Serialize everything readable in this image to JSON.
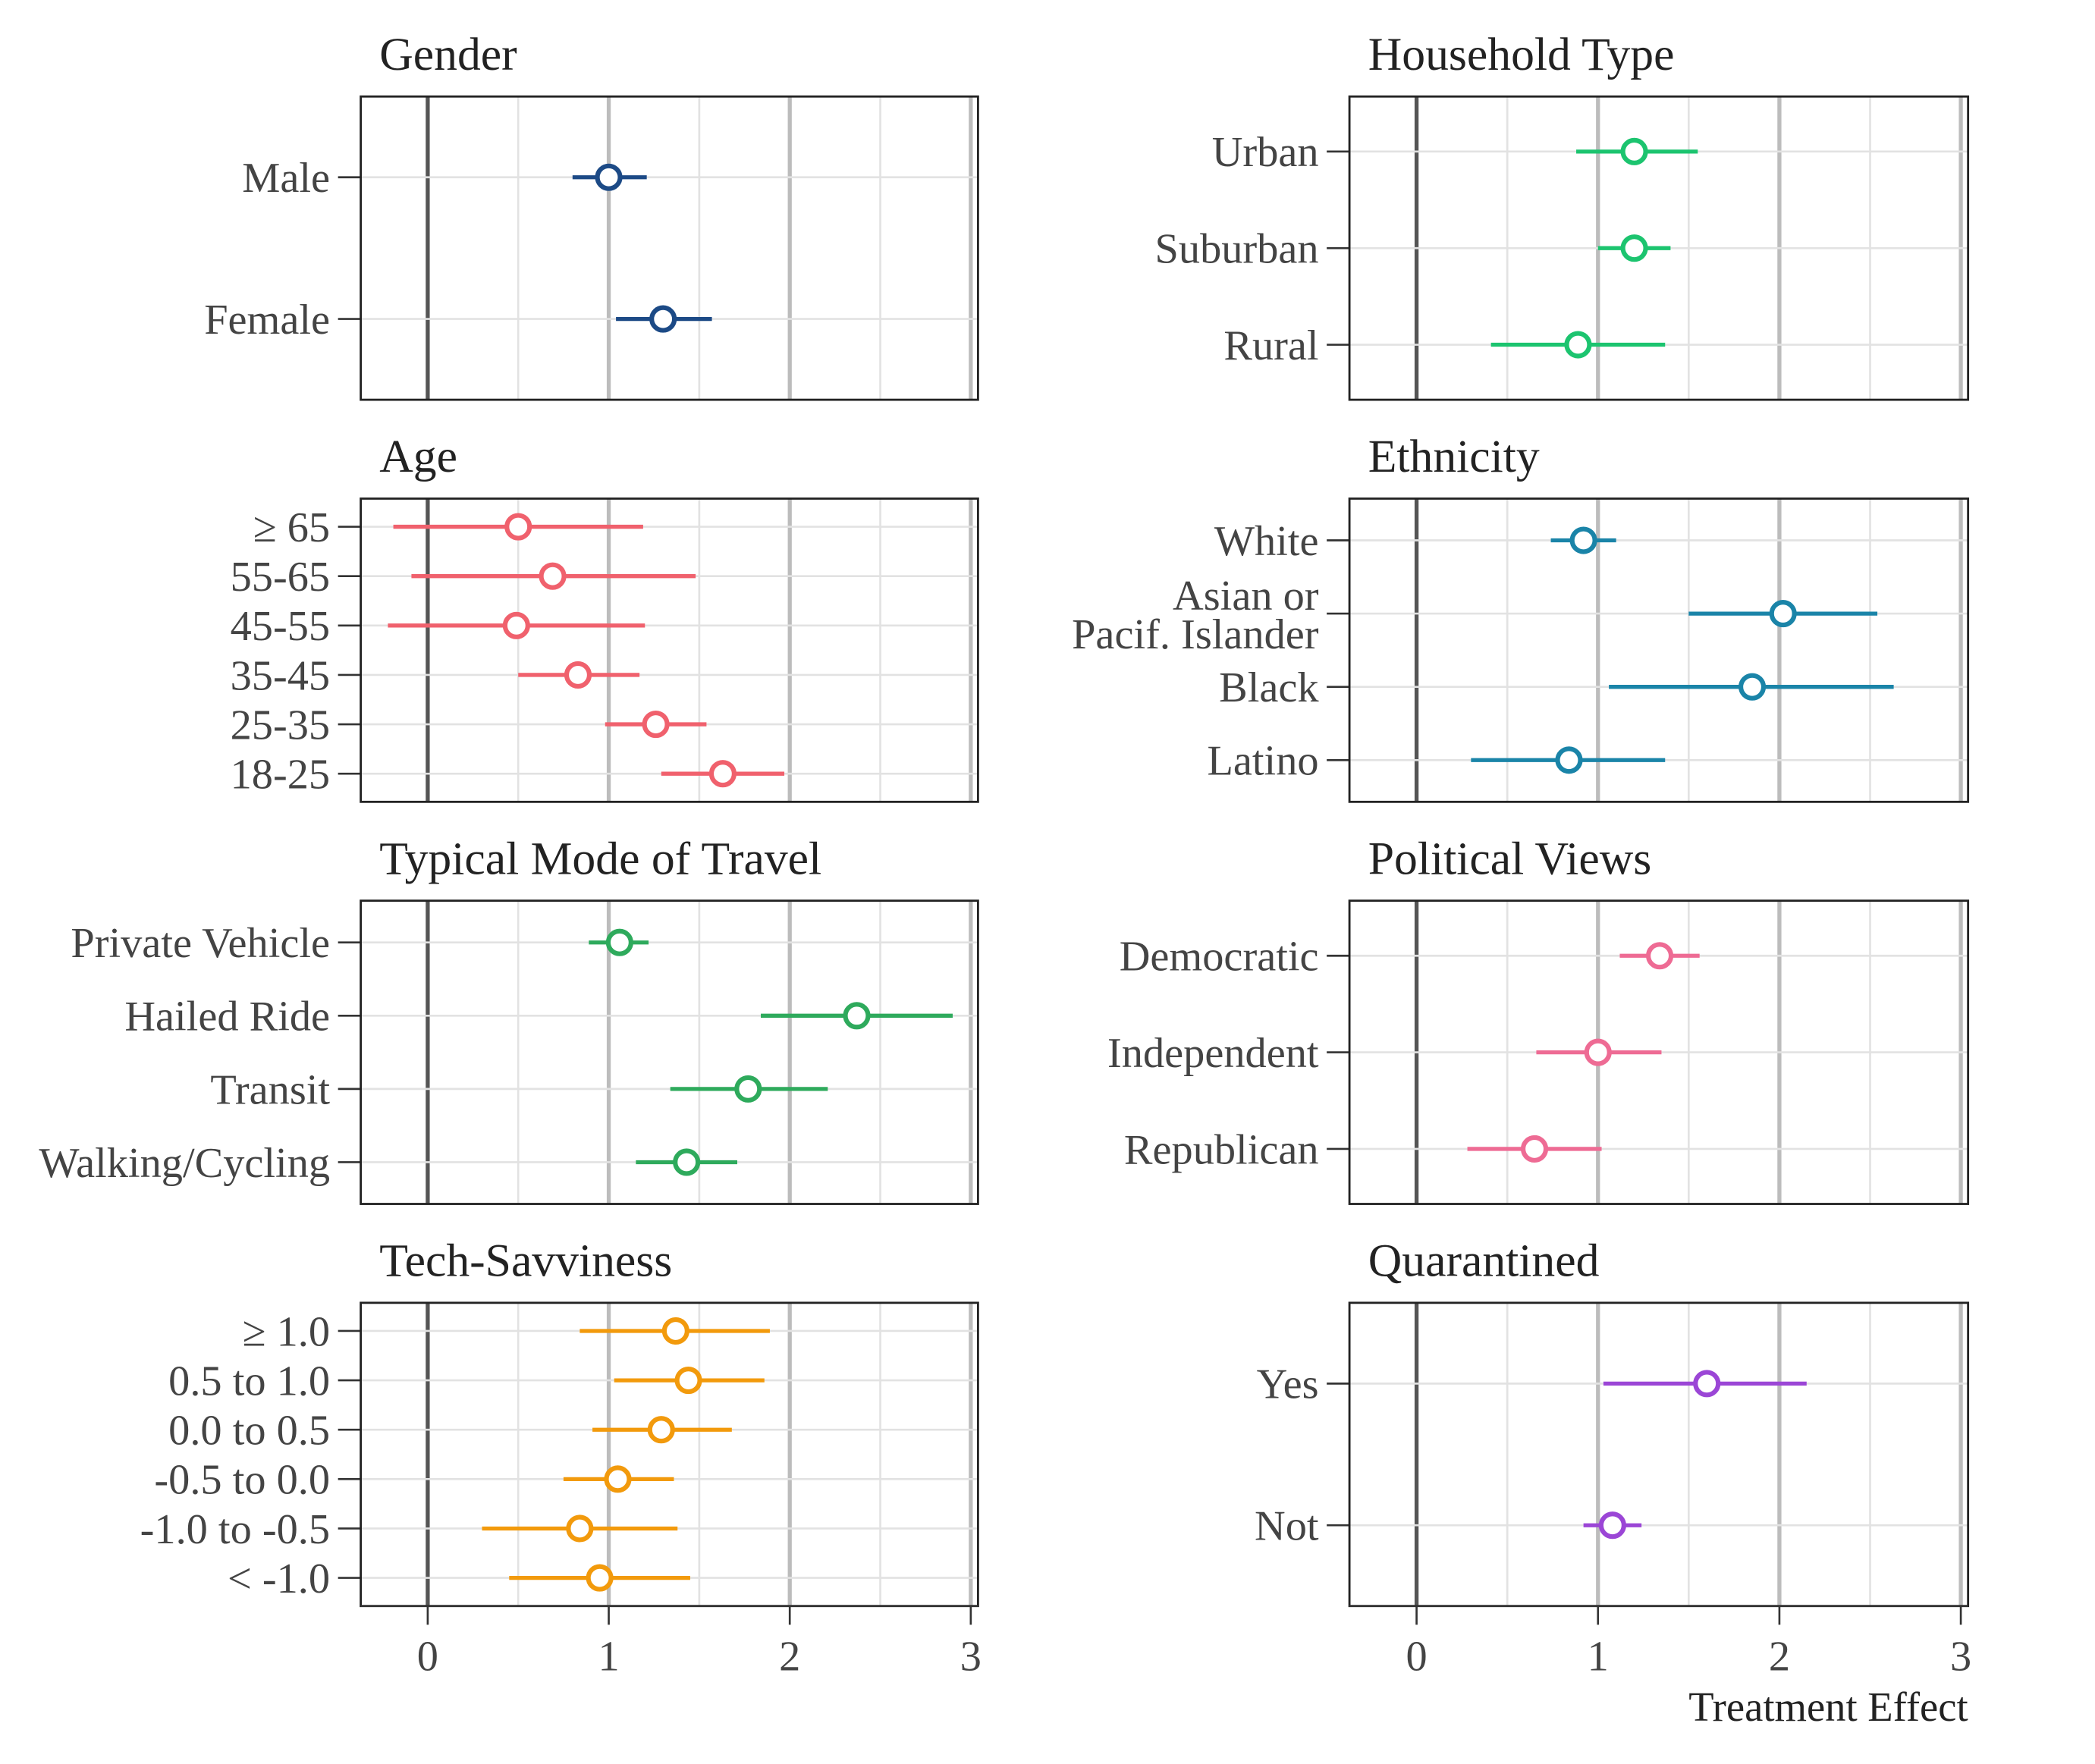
{
  "chart_data": {
    "type": "scatter",
    "subtype": "forest-plot-with-error-bars",
    "xlabel": "Treatment Effect",
    "xlim": [
      -0.37,
      3.04
    ],
    "xticks": [
      0,
      1,
      2,
      3
    ],
    "grid": true,
    "panels": [
      {
        "title": "Gender",
        "color": "#1c4a86",
        "categories": [
          "Male",
          "Female"
        ],
        "estimate": [
          1.0,
          1.3
        ],
        "lower": [
          0.8,
          1.04
        ],
        "upper": [
          1.21,
          1.57
        ]
      },
      {
        "title": "Household Type",
        "color": "#1cc46f",
        "categories": [
          "Urban",
          "Suburban",
          "Rural"
        ],
        "estimate": [
          1.2,
          1.2,
          0.89
        ],
        "lower": [
          0.88,
          1.0,
          0.41
        ],
        "upper": [
          1.55,
          1.4,
          1.37
        ]
      },
      {
        "title": "Age",
        "color": "#f0616d",
        "categories": [
          "≥ 65",
          "55-65",
          "45-55",
          "35-45",
          "25-35",
          "18-25"
        ],
        "estimate": [
          0.5,
          0.69,
          0.49,
          0.83,
          1.26,
          1.63
        ],
        "lower": [
          -0.19,
          -0.09,
          -0.22,
          0.5,
          0.98,
          1.29
        ],
        "upper": [
          1.19,
          1.48,
          1.2,
          1.17,
          1.54,
          1.97
        ]
      },
      {
        "title": "Ethnicity",
        "color": "#1a84a8",
        "categories": [
          "White",
          "Asian or\nPacif. Islander",
          "Black",
          "Latino"
        ],
        "estimate": [
          0.92,
          2.02,
          1.85,
          0.84
        ],
        "lower": [
          0.74,
          1.5,
          1.06,
          0.3
        ],
        "upper": [
          1.1,
          2.54,
          2.63,
          1.37
        ]
      },
      {
        "title": "Typical Mode of Travel",
        "color": "#2eaa5c",
        "categories": [
          "Private Vehicle",
          "Hailed Ride",
          "Transit",
          "Walking/Cycling"
        ],
        "estimate": [
          1.06,
          2.37,
          1.77,
          1.43
        ],
        "lower": [
          0.89,
          1.84,
          1.34,
          1.15
        ],
        "upper": [
          1.22,
          2.9,
          2.21,
          1.71
        ]
      },
      {
        "title": "Political Views",
        "color": "#ee6b94",
        "categories": [
          "Democratic",
          "Independent",
          "Republican"
        ],
        "estimate": [
          1.34,
          1.0,
          0.65
        ],
        "lower": [
          1.12,
          0.66,
          0.28
        ],
        "upper": [
          1.56,
          1.35,
          1.02
        ]
      },
      {
        "title": "Tech-Savviness",
        "color": "#f29a0c",
        "categories": [
          "≥ 1.0",
          "0.5 to 1.0",
          "0.0 to 0.5",
          "-0.5 to 0.0",
          "-1.0 to -0.5",
          "< -1.0"
        ],
        "estimate": [
          1.37,
          1.44,
          1.29,
          1.05,
          0.84,
          0.95
        ],
        "lower": [
          0.84,
          1.03,
          0.91,
          0.75,
          0.3,
          0.45
        ],
        "upper": [
          1.89,
          1.86,
          1.68,
          1.36,
          1.38,
          1.45
        ]
      },
      {
        "title": "Quarantined",
        "color": "#9b46d6",
        "categories": [
          "Yes",
          "Not"
        ],
        "estimate": [
          1.6,
          1.08
        ],
        "lower": [
          1.03,
          0.92
        ],
        "upper": [
          2.15,
          1.24
        ]
      }
    ]
  }
}
